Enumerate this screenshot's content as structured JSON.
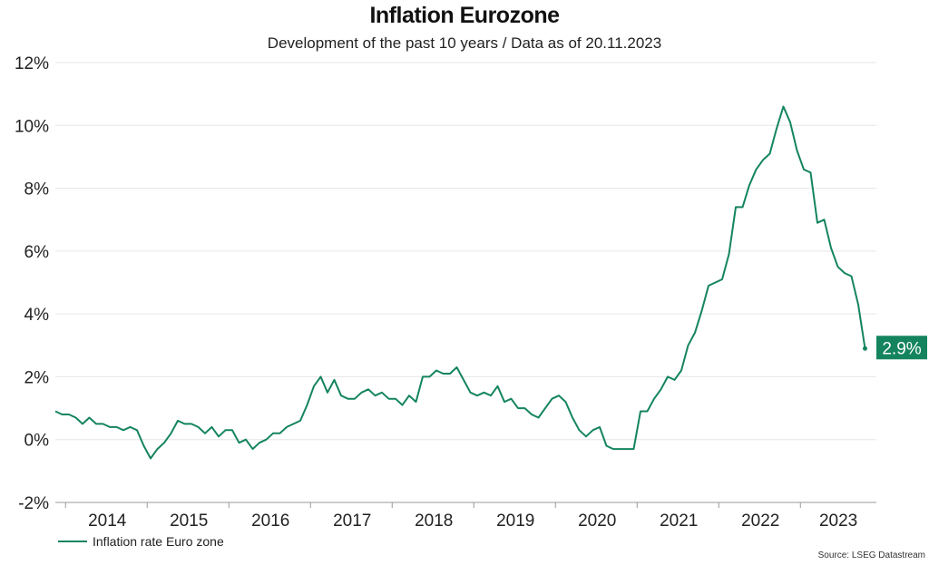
{
  "chart_data": {
    "type": "line",
    "title": "Inflation Eurozone",
    "subtitle": "Development of the past 10 years / Data as of 20.11.2023",
    "xlabel": "",
    "ylabel": "",
    "ylim": [
      -2,
      12
    ],
    "yticks": [
      -2,
      0,
      2,
      4,
      6,
      8,
      10,
      12
    ],
    "ytick_labels": [
      "-2%",
      "0%",
      "2%",
      "4%",
      "6%",
      "8%",
      "10%",
      "12%"
    ],
    "xtick_labels": [
      "2014",
      "2015",
      "2016",
      "2017",
      "2018",
      "2019",
      "2020",
      "2021",
      "2022",
      "2023"
    ],
    "start": "2013-11",
    "frequency": "monthly",
    "grid": true,
    "legend_position": "bottom-left",
    "series": [
      {
        "name": "Inflation rate Euro zone",
        "color": "#14845f",
        "values": [
          0.9,
          0.8,
          0.8,
          0.7,
          0.5,
          0.7,
          0.5,
          0.5,
          0.4,
          0.4,
          0.3,
          0.4,
          0.3,
          -0.2,
          -0.6,
          -0.3,
          -0.1,
          0.2,
          0.6,
          0.5,
          0.5,
          0.4,
          0.2,
          0.4,
          0.1,
          0.3,
          0.3,
          -0.1,
          0.0,
          -0.3,
          -0.1,
          0.0,
          0.2,
          0.2,
          0.4,
          0.5,
          0.6,
          1.1,
          1.7,
          2.0,
          1.5,
          1.9,
          1.4,
          1.3,
          1.3,
          1.5,
          1.6,
          1.4,
          1.5,
          1.3,
          1.3,
          1.1,
          1.4,
          1.2,
          2.0,
          2.0,
          2.2,
          2.1,
          2.1,
          2.3,
          1.9,
          1.5,
          1.4,
          1.5,
          1.4,
          1.7,
          1.2,
          1.3,
          1.0,
          1.0,
          0.8,
          0.7,
          1.0,
          1.3,
          1.4,
          1.2,
          0.7,
          0.3,
          0.1,
          0.3,
          0.4,
          -0.2,
          -0.3,
          -0.3,
          -0.3,
          -0.3,
          0.9,
          0.9,
          1.3,
          1.6,
          2.0,
          1.9,
          2.2,
          3.0,
          3.4,
          4.1,
          4.9,
          5.0,
          5.1,
          5.9,
          7.4,
          7.4,
          8.1,
          8.6,
          8.9,
          9.1,
          9.9,
          10.6,
          10.1,
          9.2,
          8.6,
          8.5,
          6.9,
          7.0,
          6.1,
          5.5,
          5.3,
          5.2,
          4.3,
          2.9
        ]
      }
    ],
    "last_value_label": "2.9%",
    "legend": [
      "Inflation rate Euro zone"
    ],
    "source": "Source: LSEG Datastream"
  }
}
